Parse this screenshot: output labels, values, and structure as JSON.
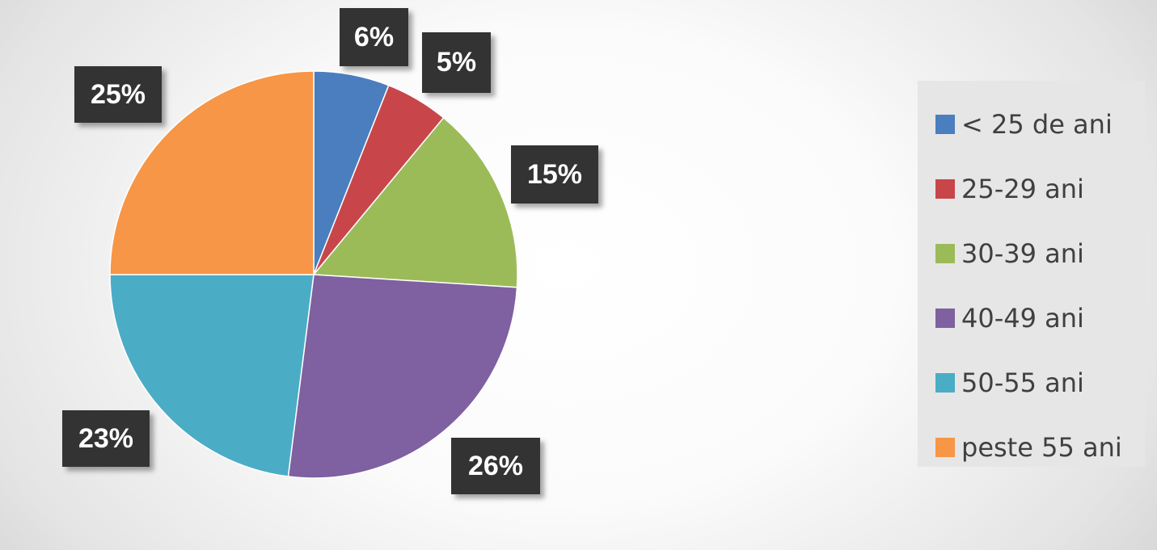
{
  "chart_data": {
    "type": "pie",
    "categories": [
      "< 25 de ani",
      "25-29 ani",
      "30-39 ani",
      "40-49 ani",
      "50-55 ani",
      "peste 55 ani"
    ],
    "values": [
      6,
      5,
      15,
      26,
      23,
      25
    ],
    "labels": [
      "6%",
      "5%",
      "15%",
      "26%",
      "23%",
      "25%"
    ],
    "colors": [
      "#4a7ebf",
      "#c8464a",
      "#9bbb59",
      "#7f60a0",
      "#4bacc6",
      "#f79646"
    ],
    "legend_position": "right",
    "start_angle": "top, clockwise"
  }
}
